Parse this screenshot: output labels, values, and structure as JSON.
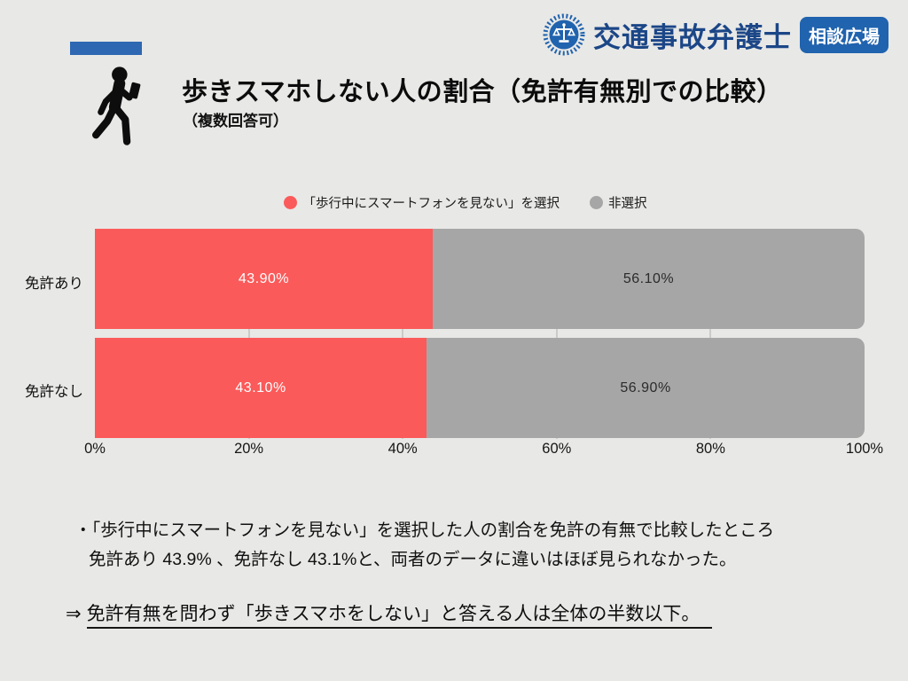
{
  "colors": {
    "background": "#e8e8e6",
    "accent_blue": "#2e68b2",
    "brand_navy": "#1b4687",
    "badge_blue": "#2063ae",
    "gridline": "#cbcbca"
  },
  "logo": {
    "brand": "交通事故弁護士",
    "badge": "相談広場",
    "icon": "scales-of-justice-icon"
  },
  "header": {
    "title": "歩きスマホしない人の割合（免許有無別での比較）",
    "subtitle": "（複数回答可）",
    "icon": "walking-person-with-phone-icon"
  },
  "chart_data": {
    "type": "bar",
    "orientation": "horizontal",
    "stacked": true,
    "unit": "%",
    "categories": [
      "免許あり",
      "免許なし"
    ],
    "series": [
      {
        "name": "「歩行中にスマートフォンを見ない」を選択",
        "color": "#fb5a5a",
        "label_color": "#ffffff",
        "values": [
          43.9,
          43.1
        ],
        "labels": [
          "43.90%",
          "43.10%"
        ]
      },
      {
        "name": "非選択",
        "color": "#a6a6a6",
        "label_color": "#2b2b2b",
        "values": [
          56.1,
          56.9
        ],
        "labels": [
          "56.10%",
          "56.90%"
        ]
      }
    ],
    "xlim": [
      0,
      100
    ],
    "x_ticks": [
      "0%",
      "20%",
      "40%",
      "60%",
      "80%",
      "100%"
    ],
    "gridline_positions": [
      20,
      40,
      60,
      80
    ],
    "grid": true,
    "legend_position": "top-center"
  },
  "notes": {
    "line1": "・「歩行中にスマートフォンを見ない」を選択した人の割合を免許の有無で比較したところ",
    "line2": "免許あり 43.9% 、免許なし 43.1%と、両者のデータに違いはほぼ見られなかった。",
    "arrow": "⇒",
    "conclusion": "免許有無を問わず「歩きスマホをしない」と答える人は全体の半数以下。"
  }
}
